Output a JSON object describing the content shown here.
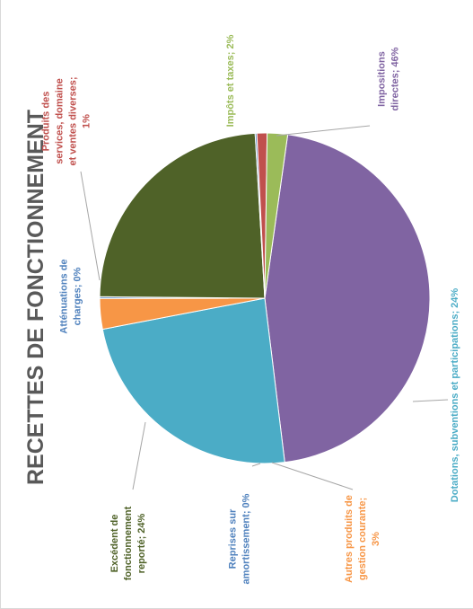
{
  "chart_data": {
    "type": "pie",
    "title": "RECETTES DE FONCTIONNEMENT",
    "slices": [
      {
        "name": "Impositions directes",
        "value": 46,
        "label_lines": [
          "Impositions",
          "directes; 46%"
        ],
        "color": "#8064a2"
      },
      {
        "name": "Dotations, subventions et participations",
        "value": 24,
        "label_lines": [
          "Dotations, subventions et participations; 24%"
        ],
        "color": "#4bacc6"
      },
      {
        "name": "Autres produits de gestion courante",
        "value": 3,
        "label_lines": [
          "Autres produits de",
          "gestion courante;",
          "3%"
        ],
        "color": "#f79646"
      },
      {
        "name": "Reprises sur amortissement",
        "value": 0,
        "label_lines": [
          "Reprises sur",
          "amortissement; 0%"
        ],
        "color": "#4f81bd"
      },
      {
        "name": "Excédent de fonctionnement reporté",
        "value": 24,
        "label_lines": [
          "Excédent de",
          "fonctionnement",
          "reporté; 24%"
        ],
        "color": "#4f6228"
      },
      {
        "name": "Atténuations de charges",
        "value": 0,
        "label_lines": [
          "Atténuations de",
          "charges; 0%"
        ],
        "color": "#4f81bd"
      },
      {
        "name": "Produits des services, domaine et ventes diverses",
        "value": 1,
        "label_lines": [
          "Produits des",
          "services, domaine",
          "et ventes diverses;",
          "1%"
        ],
        "color": "#c0504d"
      },
      {
        "name": "Impôts et taxes",
        "value": 2,
        "label_lines": [
          "Impôts et taxes; 2%"
        ],
        "color": "#9bbb59"
      }
    ]
  }
}
